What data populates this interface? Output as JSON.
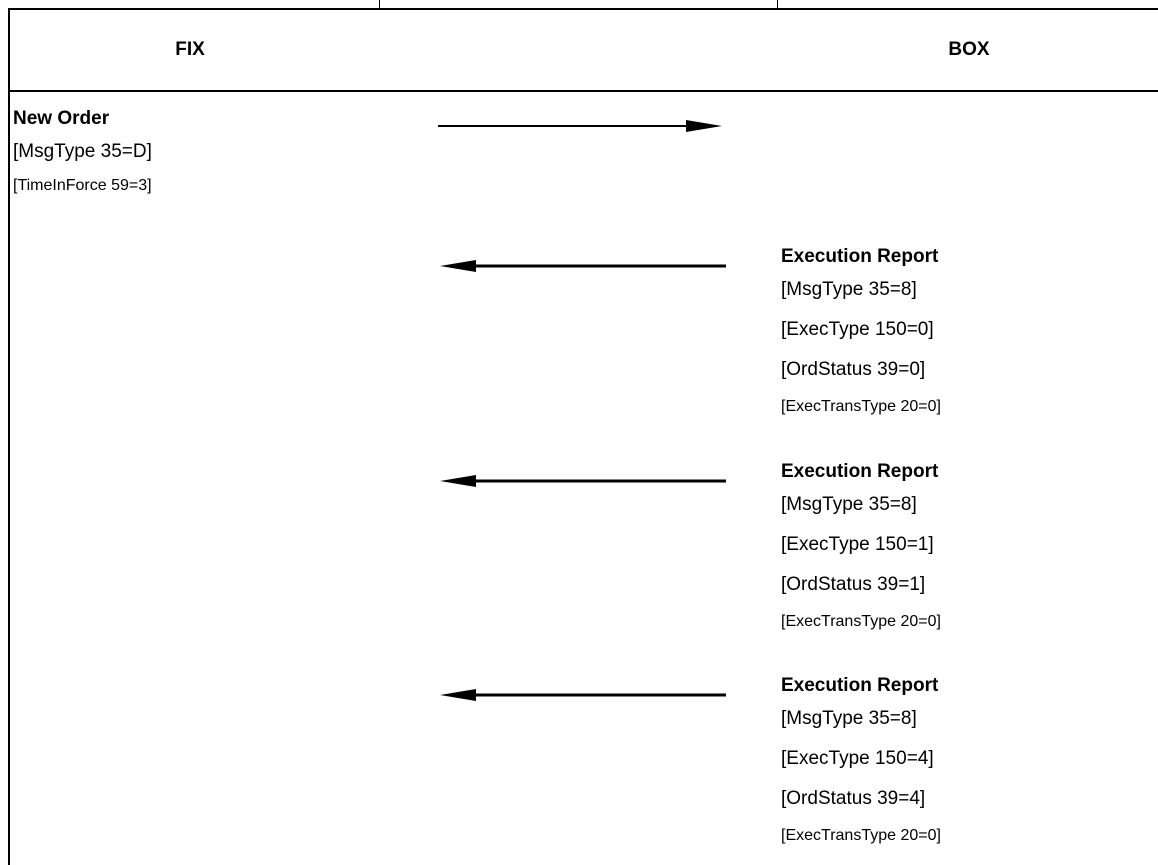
{
  "header": {
    "left_label": "FIX",
    "right_label": "BOX"
  },
  "messages": [
    {
      "direction": "left-to-right",
      "title": "New Order",
      "fields": [
        "[MsgType 35=D]",
        "[TimeInForce 59=3]"
      ]
    },
    {
      "direction": "right-to-left",
      "title": "Execution Report",
      "fields": [
        "[MsgType 35=8]",
        "[ExecType 150=0]",
        "[OrdStatus 39=0]",
        "[ExecTransType 20=0]"
      ]
    },
    {
      "direction": "right-to-left",
      "title": "Execution Report",
      "fields": [
        "[MsgType 35=8]",
        "[ExecType 150=1]",
        "[OrdStatus 39=1]",
        "[ExecTransType 20=0]"
      ]
    },
    {
      "direction": "right-to-left",
      "title": "Execution Report",
      "fields": [
        "[MsgType 35=8]",
        "[ExecType 150=4]",
        "[OrdStatus 39=4]",
        "[ExecTransType 20=0]"
      ]
    }
  ]
}
